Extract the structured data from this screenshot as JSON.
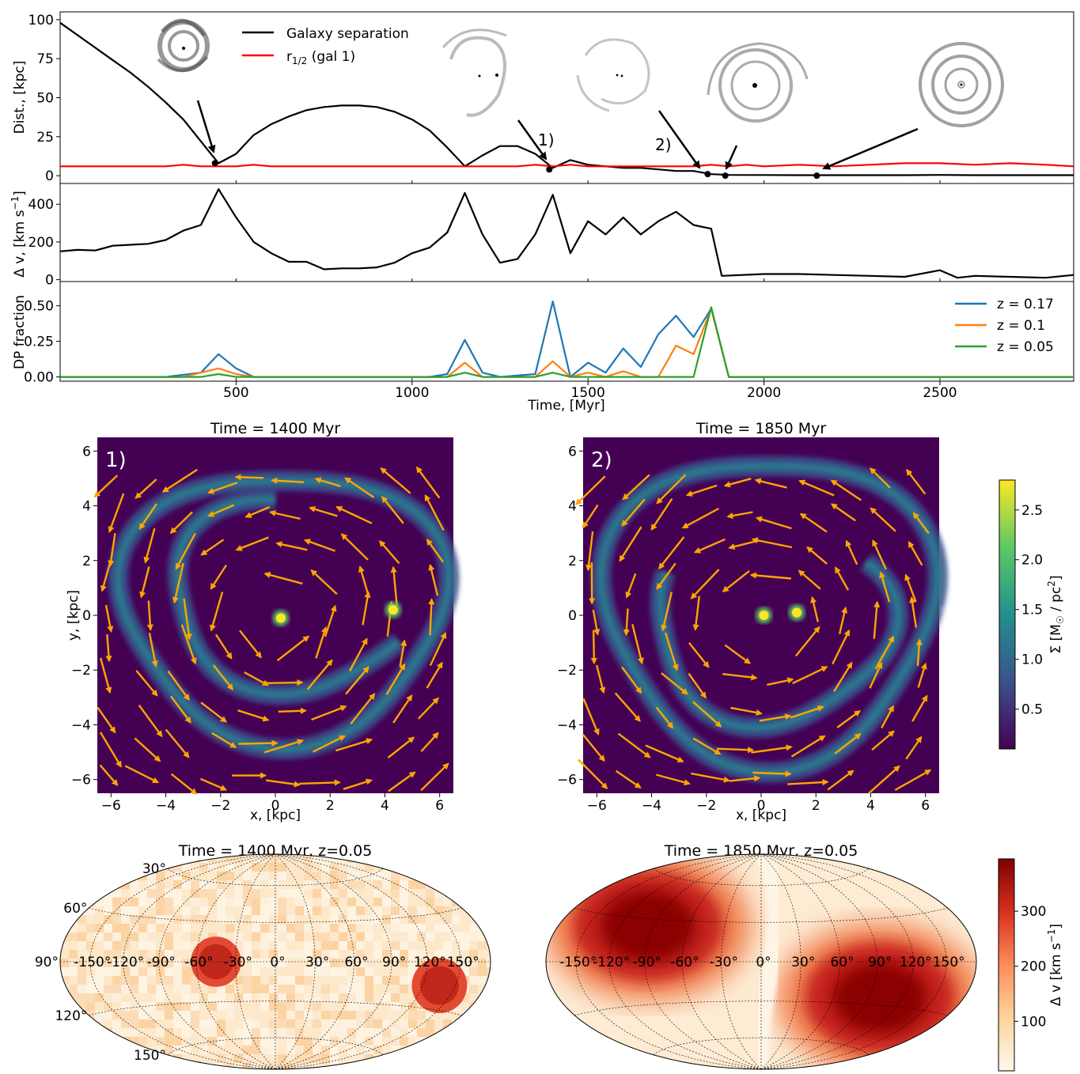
{
  "chart_data": [
    {
      "type": "line",
      "ylabel": "Dist., [kpc]",
      "xlim": [
        0,
        2880
      ],
      "ylim": [
        -5,
        105
      ],
      "yticks": [
        "0",
        "25",
        "50",
        "75",
        "100"
      ],
      "ytick_values": [
        0,
        25,
        50,
        75,
        100
      ],
      "series": [
        {
          "name": "Galaxy separation",
          "color": "#000000",
          "x": [
            0,
            100,
            150,
            200,
            250,
            300,
            350,
            400,
            450,
            500,
            550,
            600,
            650,
            700,
            750,
            800,
            850,
            900,
            950,
            1000,
            1050,
            1100,
            1150,
            1200,
            1250,
            1300,
            1350,
            1400,
            1450,
            1500,
            1550,
            1600,
            1650,
            1700,
            1750,
            1800,
            1850,
            1900,
            2000,
            2100,
            2200,
            2300,
            2400,
            2500,
            2600,
            2700,
            2800,
            2880
          ],
          "values": [
            98,
            82,
            74,
            66,
            57,
            47,
            36,
            22,
            8,
            14,
            26,
            33,
            38,
            42,
            44,
            45,
            45,
            44,
            41,
            36,
            29,
            18,
            6,
            13,
            19,
            19,
            14,
            5,
            10,
            7,
            6,
            5,
            5,
            4,
            3,
            3,
            1,
            0.5,
            0.4,
            0.3,
            0.3,
            0.3,
            0.3,
            0.5,
            0.3,
            0.3,
            0.3,
            0.3
          ]
        },
        {
          "name": "r1/2 (gal 1)",
          "color": "#ff0000",
          "x": [
            0,
            300,
            350,
            400,
            500,
            550,
            600,
            1000,
            1300,
            1350,
            1400,
            1450,
            1500,
            1700,
            1800,
            1850,
            1900,
            1950,
            2000,
            2100,
            2200,
            2300,
            2400,
            2500,
            2600,
            2700,
            2800,
            2880
          ],
          "values": [
            6,
            6,
            7,
            6,
            6,
            7,
            6,
            6,
            6,
            7,
            6,
            7,
            6,
            6,
            6,
            7,
            6,
            7,
            6,
            7,
            6,
            7,
            8,
            8,
            7,
            8,
            7,
            6
          ]
        }
      ],
      "markers": [
        {
          "x": 440,
          "y": 8
        },
        {
          "x": 1390,
          "y": 4
        },
        {
          "x": 1840,
          "y": 1
        },
        {
          "x": 1890,
          "y": 0
        },
        {
          "x": 2150,
          "y": 0
        }
      ],
      "annotations": [
        "1)",
        "2)"
      ]
    },
    {
      "type": "line",
      "ylabel": "Δ v, [km s⁻¹]",
      "xlim": [
        0,
        2880
      ],
      "ylim": [
        -10,
        510
      ],
      "yticks": [
        "0",
        "200",
        "400"
      ],
      "ytick_values": [
        0,
        200,
        400
      ],
      "series": [
        {
          "name": "",
          "color": "#000000",
          "x": [
            0,
            50,
            100,
            150,
            200,
            250,
            300,
            350,
            400,
            450,
            500,
            550,
            600,
            650,
            700,
            750,
            800,
            850,
            900,
            950,
            1000,
            1050,
            1100,
            1150,
            1200,
            1250,
            1300,
            1350,
            1400,
            1450,
            1500,
            1550,
            1600,
            1650,
            1700,
            1750,
            1800,
            1850,
            1880,
            2000,
            2100,
            2200,
            2300,
            2400,
            2500,
            2550,
            2600,
            2700,
            2800,
            2880
          ],
          "values": [
            150,
            158,
            155,
            180,
            185,
            190,
            210,
            260,
            290,
            480,
            330,
            200,
            140,
            95,
            95,
            55,
            60,
            60,
            65,
            90,
            140,
            170,
            250,
            460,
            240,
            90,
            110,
            240,
            450,
            140,
            310,
            240,
            330,
            240,
            310,
            360,
            290,
            270,
            20,
            30,
            30,
            25,
            20,
            15,
            50,
            10,
            20,
            15,
            10,
            25
          ]
        }
      ]
    },
    {
      "type": "line",
      "xlabel": "Time, [Myr]",
      "ylabel": "DP fraction",
      "xlim": [
        0,
        2880
      ],
      "ylim": [
        -0.03,
        0.67
      ],
      "xticks": [
        "500",
        "1000",
        "1500",
        "2000",
        "2500"
      ],
      "xtick_values": [
        500,
        1000,
        1500,
        2000,
        2500
      ],
      "yticks": [
        "0.00",
        "0.25",
        "0.50"
      ],
      "ytick_values": [
        0,
        0.25,
        0.5
      ],
      "series": [
        {
          "name": "z = 0.17",
          "color": "#1f77b4",
          "x": [
            0,
            300,
            400,
            450,
            500,
            550,
            1050,
            1100,
            1150,
            1200,
            1250,
            1350,
            1400,
            1450,
            1500,
            1550,
            1600,
            1650,
            1700,
            1750,
            1800,
            1850,
            1900,
            2880
          ],
          "values": [
            0,
            0,
            0.03,
            0.16,
            0.06,
            0,
            0,
            0.02,
            0.26,
            0.03,
            0,
            0.02,
            0.53,
            0,
            0.1,
            0.03,
            0.2,
            0.07,
            0.3,
            0.43,
            0.28,
            0.48,
            0,
            0
          ]
        },
        {
          "name": "z = 0.1",
          "color": "#ff7f0e",
          "x": [
            0,
            350,
            450,
            500,
            550,
            1100,
            1150,
            1200,
            1350,
            1400,
            1450,
            1500,
            1550,
            1600,
            1650,
            1700,
            1750,
            1800,
            1850,
            1900,
            2880
          ],
          "values": [
            0,
            0,
            0.06,
            0.02,
            0,
            0,
            0.1,
            0,
            0,
            0.11,
            0,
            0.03,
            0,
            0.04,
            0,
            0,
            0.22,
            0.16,
            0.48,
            0,
            0
          ]
        },
        {
          "name": "z = 0.05",
          "color": "#2ca02c",
          "x": [
            0,
            400,
            450,
            500,
            1100,
            1150,
            1200,
            1350,
            1400,
            1450,
            1800,
            1850,
            1900,
            2880
          ],
          "values": [
            0,
            0,
            0.02,
            0,
            0,
            0.03,
            0,
            0,
            0.03,
            0,
            0,
            0.49,
            0,
            0
          ]
        }
      ]
    },
    {
      "type": "heatmap",
      "title": "Time = 1400 Myr",
      "panel_label": "1)",
      "xlabel": "x, [kpc]",
      "ylabel": "y, [kpc]",
      "xlim": [
        -6.5,
        6.5
      ],
      "ylim": [
        -6.5,
        6.5
      ],
      "ticks": [
        "−6",
        "−4",
        "−2",
        "0",
        "2",
        "4",
        "6"
      ],
      "tick_values": [
        -6,
        -4,
        -2,
        0,
        2,
        4,
        6
      ],
      "nuclei": [
        {
          "x": 0.2,
          "y": -0.1
        },
        {
          "x": 4.3,
          "y": 0.2
        }
      ],
      "rings": [
        {
          "cx": 0.3,
          "cy": 0.4,
          "rx": 5.9,
          "ry": 4.9,
          "from": 0,
          "to": 360
        },
        {
          "cx": 0.8,
          "cy": 0.8,
          "rx": 4.6,
          "ry": 3.5,
          "from": 100,
          "to": 330
        }
      ],
      "arrow_direction": "counter-clockwise",
      "arrow_color": "#ffa500"
    },
    {
      "type": "heatmap",
      "title": "Time = 1850 Myr",
      "panel_label": "2)",
      "xlabel": "x, [kpc]",
      "ylabel": "",
      "xlim": [
        -6.5,
        6.5
      ],
      "ylim": [
        -6.5,
        6.5
      ],
      "ticks": [
        "−6",
        "−4",
        "−2",
        "0",
        "2",
        "4",
        "6"
      ],
      "tick_values": [
        -6,
        -4,
        -2,
        0,
        2,
        4,
        6
      ],
      "nuclei": [
        {
          "x": 0.1,
          "y": 0.0
        },
        {
          "x": 1.3,
          "y": 0.1
        }
      ],
      "rings": [
        {
          "cx": 0.3,
          "cy": 0.3,
          "rx": 6.0,
          "ry": 5.6,
          "from": 0,
          "to": 360
        },
        {
          "cx": 0.4,
          "cy": -0.3,
          "rx": 4.3,
          "ry": 3.6,
          "from": 150,
          "to": 400
        }
      ],
      "arrow_direction": "counter-clockwise",
      "arrow_color": "#ffa500",
      "colorbar": {
        "label": "Σ [M☉ / pc²]",
        "range": [
          0.1,
          2.8
        ],
        "ticks": [
          "0.5",
          "1.0",
          "1.5",
          "2.0",
          "2.5"
        ],
        "tick_values": [
          0.5,
          1.0,
          1.5,
          2.0,
          2.5
        ],
        "colormap": "viridis"
      }
    },
    {
      "type": "heatmap",
      "title": "Time = 1400 Myr, z=0.05",
      "projection": "hammer",
      "lon_labels": [
        "-150°",
        "-120°",
        "-90°",
        "-60°",
        "-30°",
        "0°",
        "30°",
        "60°",
        "90°",
        "120°",
        "150°"
      ],
      "lon_values": [
        -150,
        -120,
        -90,
        -60,
        -30,
        0,
        30,
        60,
        90,
        120,
        150
      ],
      "lat_labels": [
        "30°",
        "60°",
        "90°",
        "120°",
        "150°"
      ],
      "lat_values": [
        60,
        30,
        0,
        -30,
        -60
      ],
      "hot_spots": [
        {
          "lon": -45,
          "lat": 0,
          "radius_deg": 20,
          "value": 300
        },
        {
          "lon": 135,
          "lat": -15,
          "radius_deg": 22,
          "value": 320
        }
      ],
      "background_range": [
        40,
        160
      ]
    },
    {
      "type": "heatmap",
      "title": "Time = 1850 Myr, z=0.05",
      "projection": "hammer",
      "lon_labels": [
        "-150°",
        "-120°",
        "-90°",
        "-60°",
        "-30°",
        "0°",
        "30°",
        "60°",
        "90°",
        "120°",
        "150°"
      ],
      "lon_values": [
        -150,
        -120,
        -90,
        -60,
        -30,
        0,
        30,
        60,
        90,
        120,
        150
      ],
      "lat_values": [
        60,
        30,
        0,
        -30,
        -60
      ],
      "pattern": "dipole",
      "peaks": [
        {
          "lon": -95,
          "lat": 25,
          "value": 380
        },
        {
          "lon": 100,
          "lat": -25,
          "value": 380
        }
      ],
      "colorbar": {
        "label": "Δ v [km s⁻¹]",
        "range": [
          10,
          395
        ],
        "ticks": [
          "100",
          "200",
          "300"
        ],
        "tick_values": [
          100,
          200,
          300
        ],
        "colormap": "OrRd"
      }
    }
  ]
}
